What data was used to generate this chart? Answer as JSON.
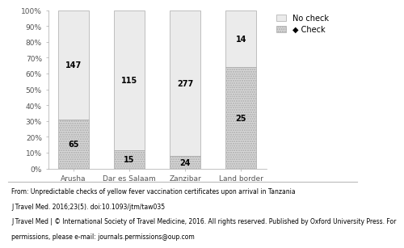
{
  "categories": [
    "Arusha",
    "Dar es Salaam",
    "Zanzibar",
    "Land border"
  ],
  "check_pct": [
    30.7,
    11.5,
    8.0,
    64.1
  ],
  "nocheck_pct": [
    69.3,
    88.5,
    92.0,
    35.9
  ],
  "check_n": [
    65,
    15,
    24,
    25
  ],
  "nocheck_n": [
    147,
    115,
    277,
    14
  ],
  "check_color": "#d8d8d8",
  "nocheck_color": "#ebebeb",
  "bar_width": 0.55,
  "ylim": [
    0,
    100
  ],
  "yticks": [
    0,
    10,
    20,
    30,
    40,
    50,
    60,
    70,
    80,
    90,
    100
  ],
  "ytick_labels": [
    "0%",
    "10%",
    "20%",
    "30%",
    "40%",
    "50%",
    "60%",
    "70%",
    "80%",
    "90%",
    "100%"
  ],
  "legend_nocheck": "No check",
  "legend_check": "◆ Check",
  "footnote_line1": "From: Unpredictable checks of yellow fever vaccination certificates upon arrival in Tanzania",
  "footnote_line2": "J Travel Med. 2016;23(5). doi:10.1093/jtm/taw035",
  "footnote_line3": "J Travel Med | © International Society of Travel Medicine, 2016. All rights reserved. Published by Oxford University Press. For",
  "footnote_line4": "permissions, please e-mail: journals.permissions@oup.com",
  "annotation_fontsize": 7,
  "tick_fontsize": 6.5,
  "legend_fontsize": 7,
  "footnote_fontsize": 5.5
}
